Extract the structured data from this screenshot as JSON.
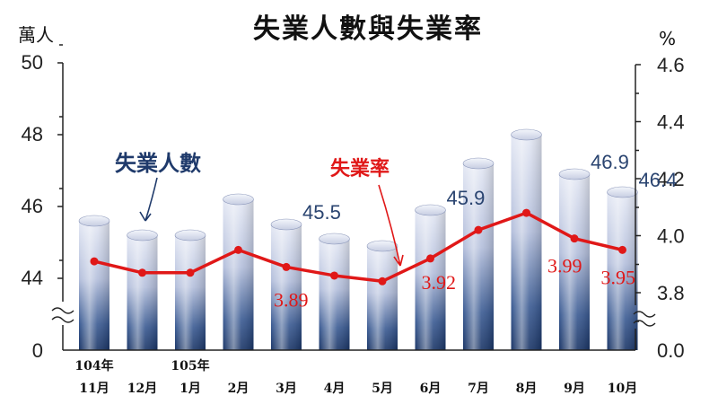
{
  "chart_data": {
    "type": "bar+line",
    "title": "失業人數與失業率",
    "left_unit": "萬人",
    "right_unit": "%",
    "categories": [
      {
        "year": "104年",
        "month": "11月"
      },
      {
        "year": "",
        "month": "12月"
      },
      {
        "year": "105年",
        "month": "1月"
      },
      {
        "year": "",
        "month": "2月"
      },
      {
        "year": "",
        "month": "3月"
      },
      {
        "year": "",
        "month": "4月"
      },
      {
        "year": "",
        "month": "5月"
      },
      {
        "year": "",
        "month": "6月"
      },
      {
        "year": "",
        "month": "7月"
      },
      {
        "year": "",
        "month": "8月"
      },
      {
        "year": "",
        "month": "9月"
      },
      {
        "year": "",
        "month": "10月"
      }
    ],
    "series": [
      {
        "name": "失業人數",
        "kind": "bar",
        "axis": "left",
        "values": [
          45.6,
          45.2,
          45.2,
          46.2,
          45.5,
          45.1,
          44.9,
          45.9,
          47.2,
          48.0,
          46.9,
          46.4
        ],
        "labels": [
          "",
          "",
          "",
          "",
          "45.5",
          "",
          "",
          "45.9",
          "",
          "",
          "46.9",
          "46.4"
        ]
      },
      {
        "name": "失業率",
        "kind": "line",
        "axis": "right",
        "values": [
          3.91,
          3.87,
          3.87,
          3.95,
          3.89,
          3.86,
          3.84,
          3.92,
          4.02,
          4.08,
          3.99,
          3.95
        ],
        "labels": [
          "",
          "",
          "",
          "",
          "3.89",
          "",
          "",
          "3.92",
          "",
          "",
          "3.99",
          "3.95"
        ]
      }
    ],
    "left_axis": {
      "range": [
        44,
        50
      ],
      "ticks": [
        "44",
        "46",
        "48",
        "50"
      ],
      "break_label": "0",
      "broken": true
    },
    "right_axis": {
      "range": [
        3.8,
        4.6
      ],
      "ticks": [
        "3.8",
        "4.0",
        "4.2",
        "4.4",
        "4.6"
      ],
      "break_label": "0.0",
      "broken": true
    },
    "grid": false,
    "colors": {
      "bar_dark": "#1c3a6e",
      "bar_light": "#eceff8",
      "line": "#e01818",
      "blue_text": "#1f3a6b",
      "red_text": "#e01818"
    }
  }
}
